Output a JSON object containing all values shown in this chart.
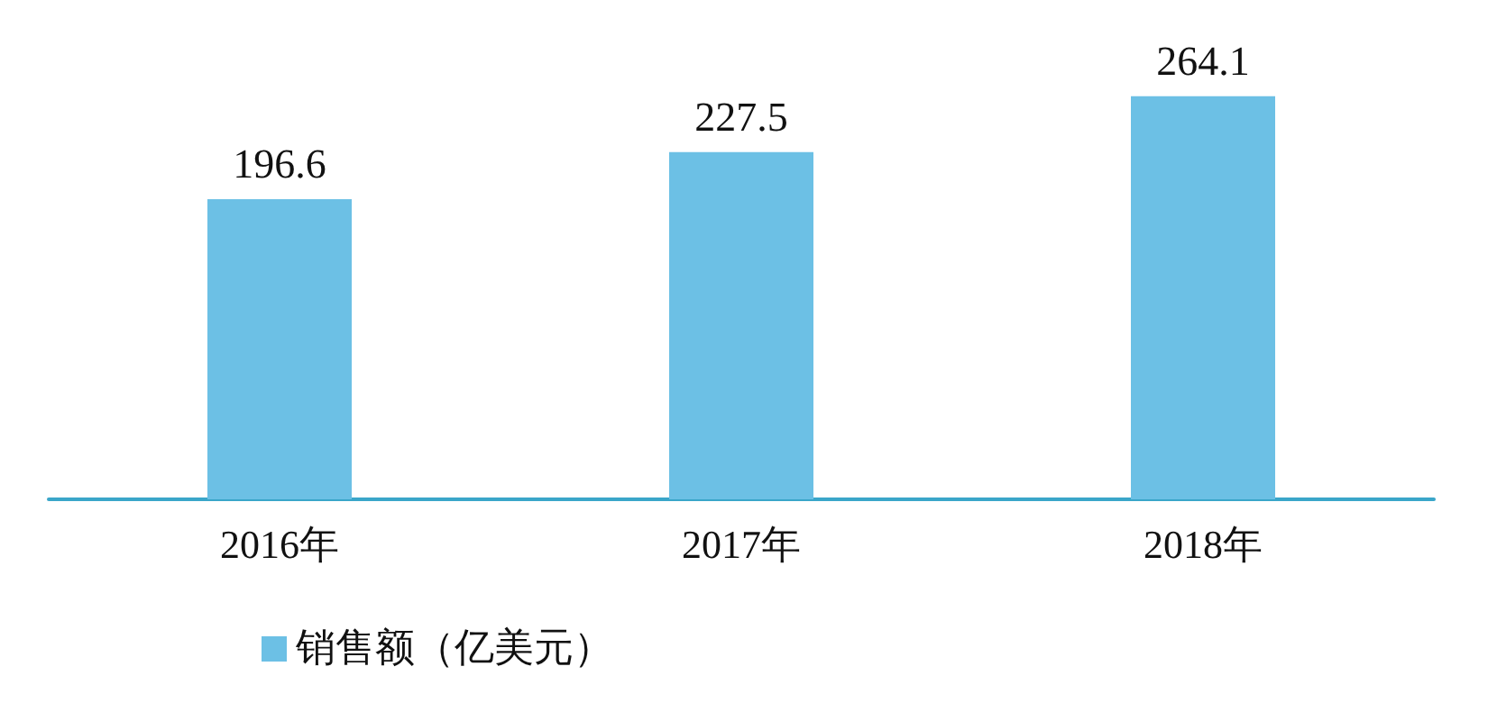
{
  "chart_data": {
    "type": "bar",
    "categories": [
      "2016年",
      "2017年",
      "2018年"
    ],
    "series": [
      {
        "name": "销售额（亿美元）",
        "color": "#6cc0e5",
        "values": [
          196.6,
          227.5,
          264.1
        ]
      }
    ],
    "data_labels": true,
    "legend": "bottom left",
    "grid": false
  }
}
